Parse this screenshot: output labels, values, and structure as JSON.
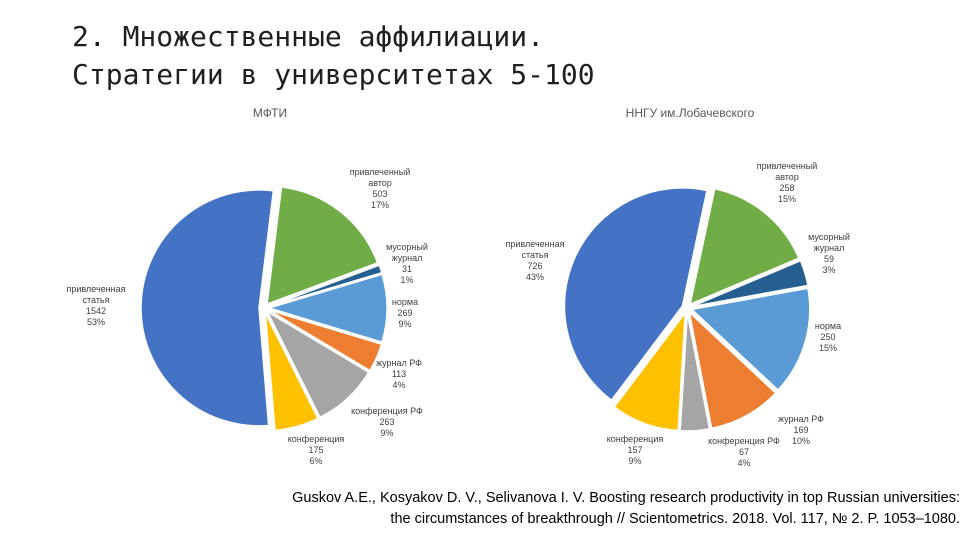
{
  "title": {
    "line1": "2. Множественные аффилиации.",
    "line2": "Стратегии в университетах 5-100"
  },
  "chart_data": [
    {
      "type": "pie",
      "title": "МФТИ",
      "slices": [
        {
          "name": "привлеченный автор",
          "lines": [
            "привлеченный",
            "автор"
          ],
          "value": 503,
          "percent": "17%",
          "color": "#70AD47"
        },
        {
          "name": "мусорный журнал",
          "lines": [
            "мусорный",
            "журнал"
          ],
          "value": 31,
          "percent": "1%",
          "color": "#255E91"
        },
        {
          "name": "норма",
          "lines": [
            "норма"
          ],
          "value": 269,
          "percent": "9%",
          "color": "#5B9BD5"
        },
        {
          "name": "журнал РФ",
          "lines": [
            "журнал РФ"
          ],
          "value": 113,
          "percent": "4%",
          "color": "#ED7D31"
        },
        {
          "name": "конференция РФ",
          "lines": [
            "конференция РФ"
          ],
          "value": 263,
          "percent": "9%",
          "color": "#A5A5A5"
        },
        {
          "name": "конференция",
          "lines": [
            "конференция"
          ],
          "value": 175,
          "percent": "6%",
          "color": "#FFC000"
        },
        {
          "name": "привлеченная статья",
          "lines": [
            "привлеченная",
            "статья"
          ],
          "value": 1542,
          "percent": "53%",
          "color": "#4472C4"
        }
      ]
    },
    {
      "type": "pie",
      "title": "ННГУ им.Лобачевского",
      "slices": [
        {
          "name": "привлеченный автор",
          "lines": [
            "привлеченный",
            "автор"
          ],
          "value": 258,
          "percent": "15%",
          "color": "#70AD47"
        },
        {
          "name": "мусорный журнал",
          "lines": [
            "мусорный",
            "журнал"
          ],
          "value": 59,
          "percent": "3%",
          "color": "#255E91"
        },
        {
          "name": "норма",
          "lines": [
            "норма"
          ],
          "value": 250,
          "percent": "15%",
          "color": "#5B9BD5"
        },
        {
          "name": "журнал РФ",
          "lines": [
            "журнал РФ"
          ],
          "value": 169,
          "percent": "10%",
          "color": "#ED7D31"
        },
        {
          "name": "конференция РФ",
          "lines": [
            "конференция РФ"
          ],
          "value": 67,
          "percent": "4%",
          "color": "#A5A5A5"
        },
        {
          "name": "конференция",
          "lines": [
            "конференция"
          ],
          "value": 157,
          "percent": "9%",
          "color": "#FFC000"
        },
        {
          "name": "привлеченная статья",
          "lines": [
            "привлеченная",
            "статья"
          ],
          "value": 726,
          "percent": "43%",
          "color": "#4472C4"
        }
      ]
    }
  ],
  "citation": {
    "line1": "Guskov A.E., Kosyakov D. V., Selivanova I. V. Boosting research productivity in top Russian universities:",
    "line2": "the circumstances of breakthrough // Scientometrics. 2018. Vol. 117, № 2. P. 1053–1080."
  }
}
